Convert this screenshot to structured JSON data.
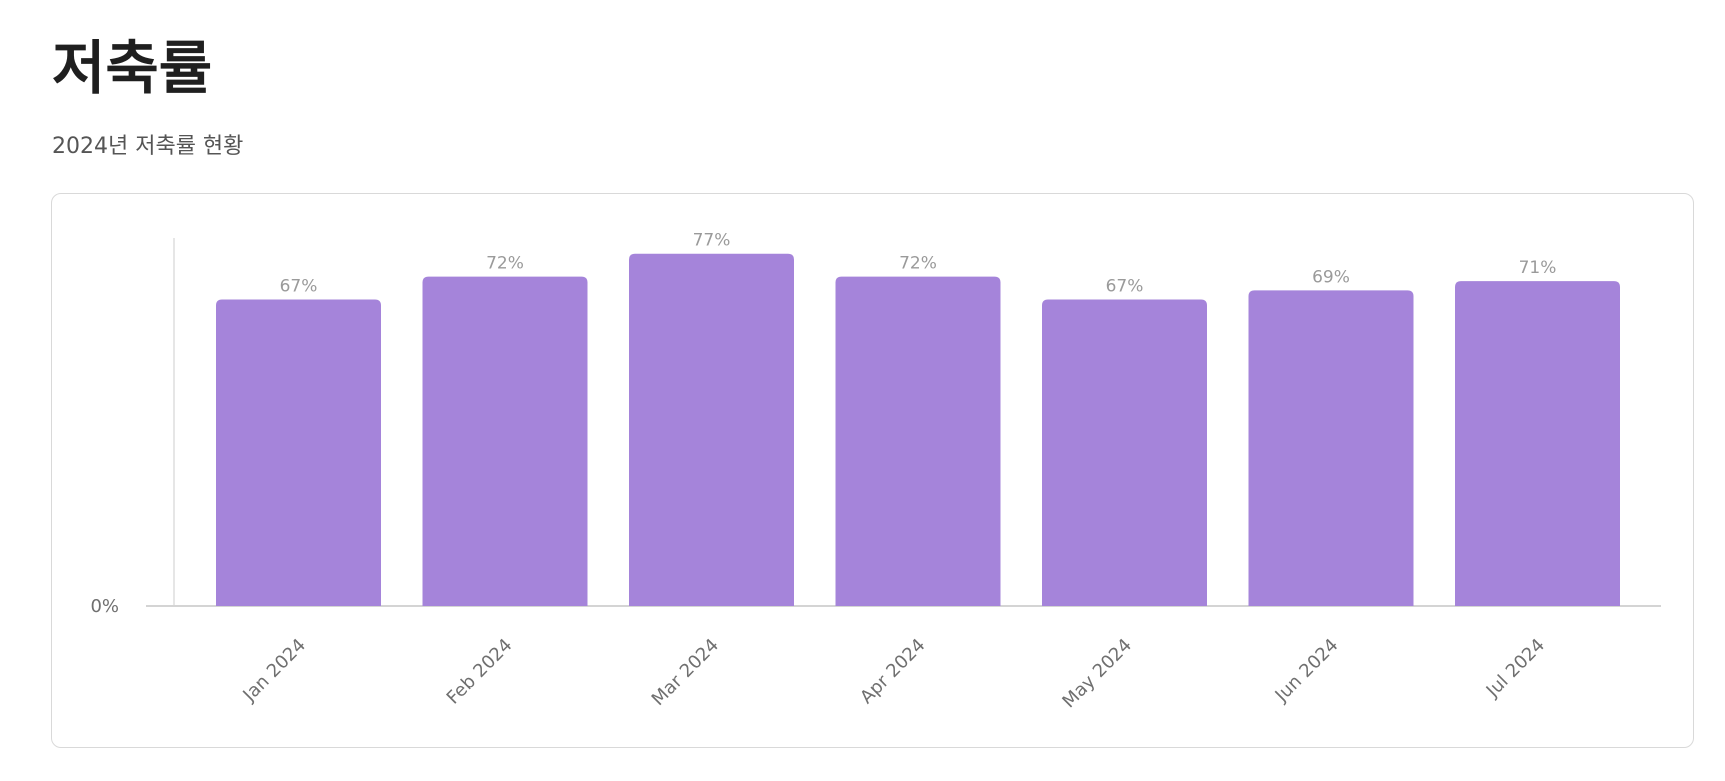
{
  "header": {
    "title": "저축률",
    "subtitle": "2024년 저축률 현황"
  },
  "chart_data": {
    "type": "bar",
    "categories": [
      "Jan 2024",
      "Feb 2024",
      "Mar 2024",
      "Apr 2024",
      "May 2024",
      "Jun 2024",
      "Jul 2024"
    ],
    "values": [
      67,
      72,
      77,
      72,
      67,
      69,
      71
    ],
    "data_labels": [
      "67%",
      "72%",
      "77%",
      "72%",
      "67%",
      "69%",
      "71%"
    ],
    "y_ticks": [
      "0%"
    ],
    "ylim": [
      0,
      80
    ],
    "bar_color": "#a584da",
    "grid": false,
    "legend": "none"
  }
}
